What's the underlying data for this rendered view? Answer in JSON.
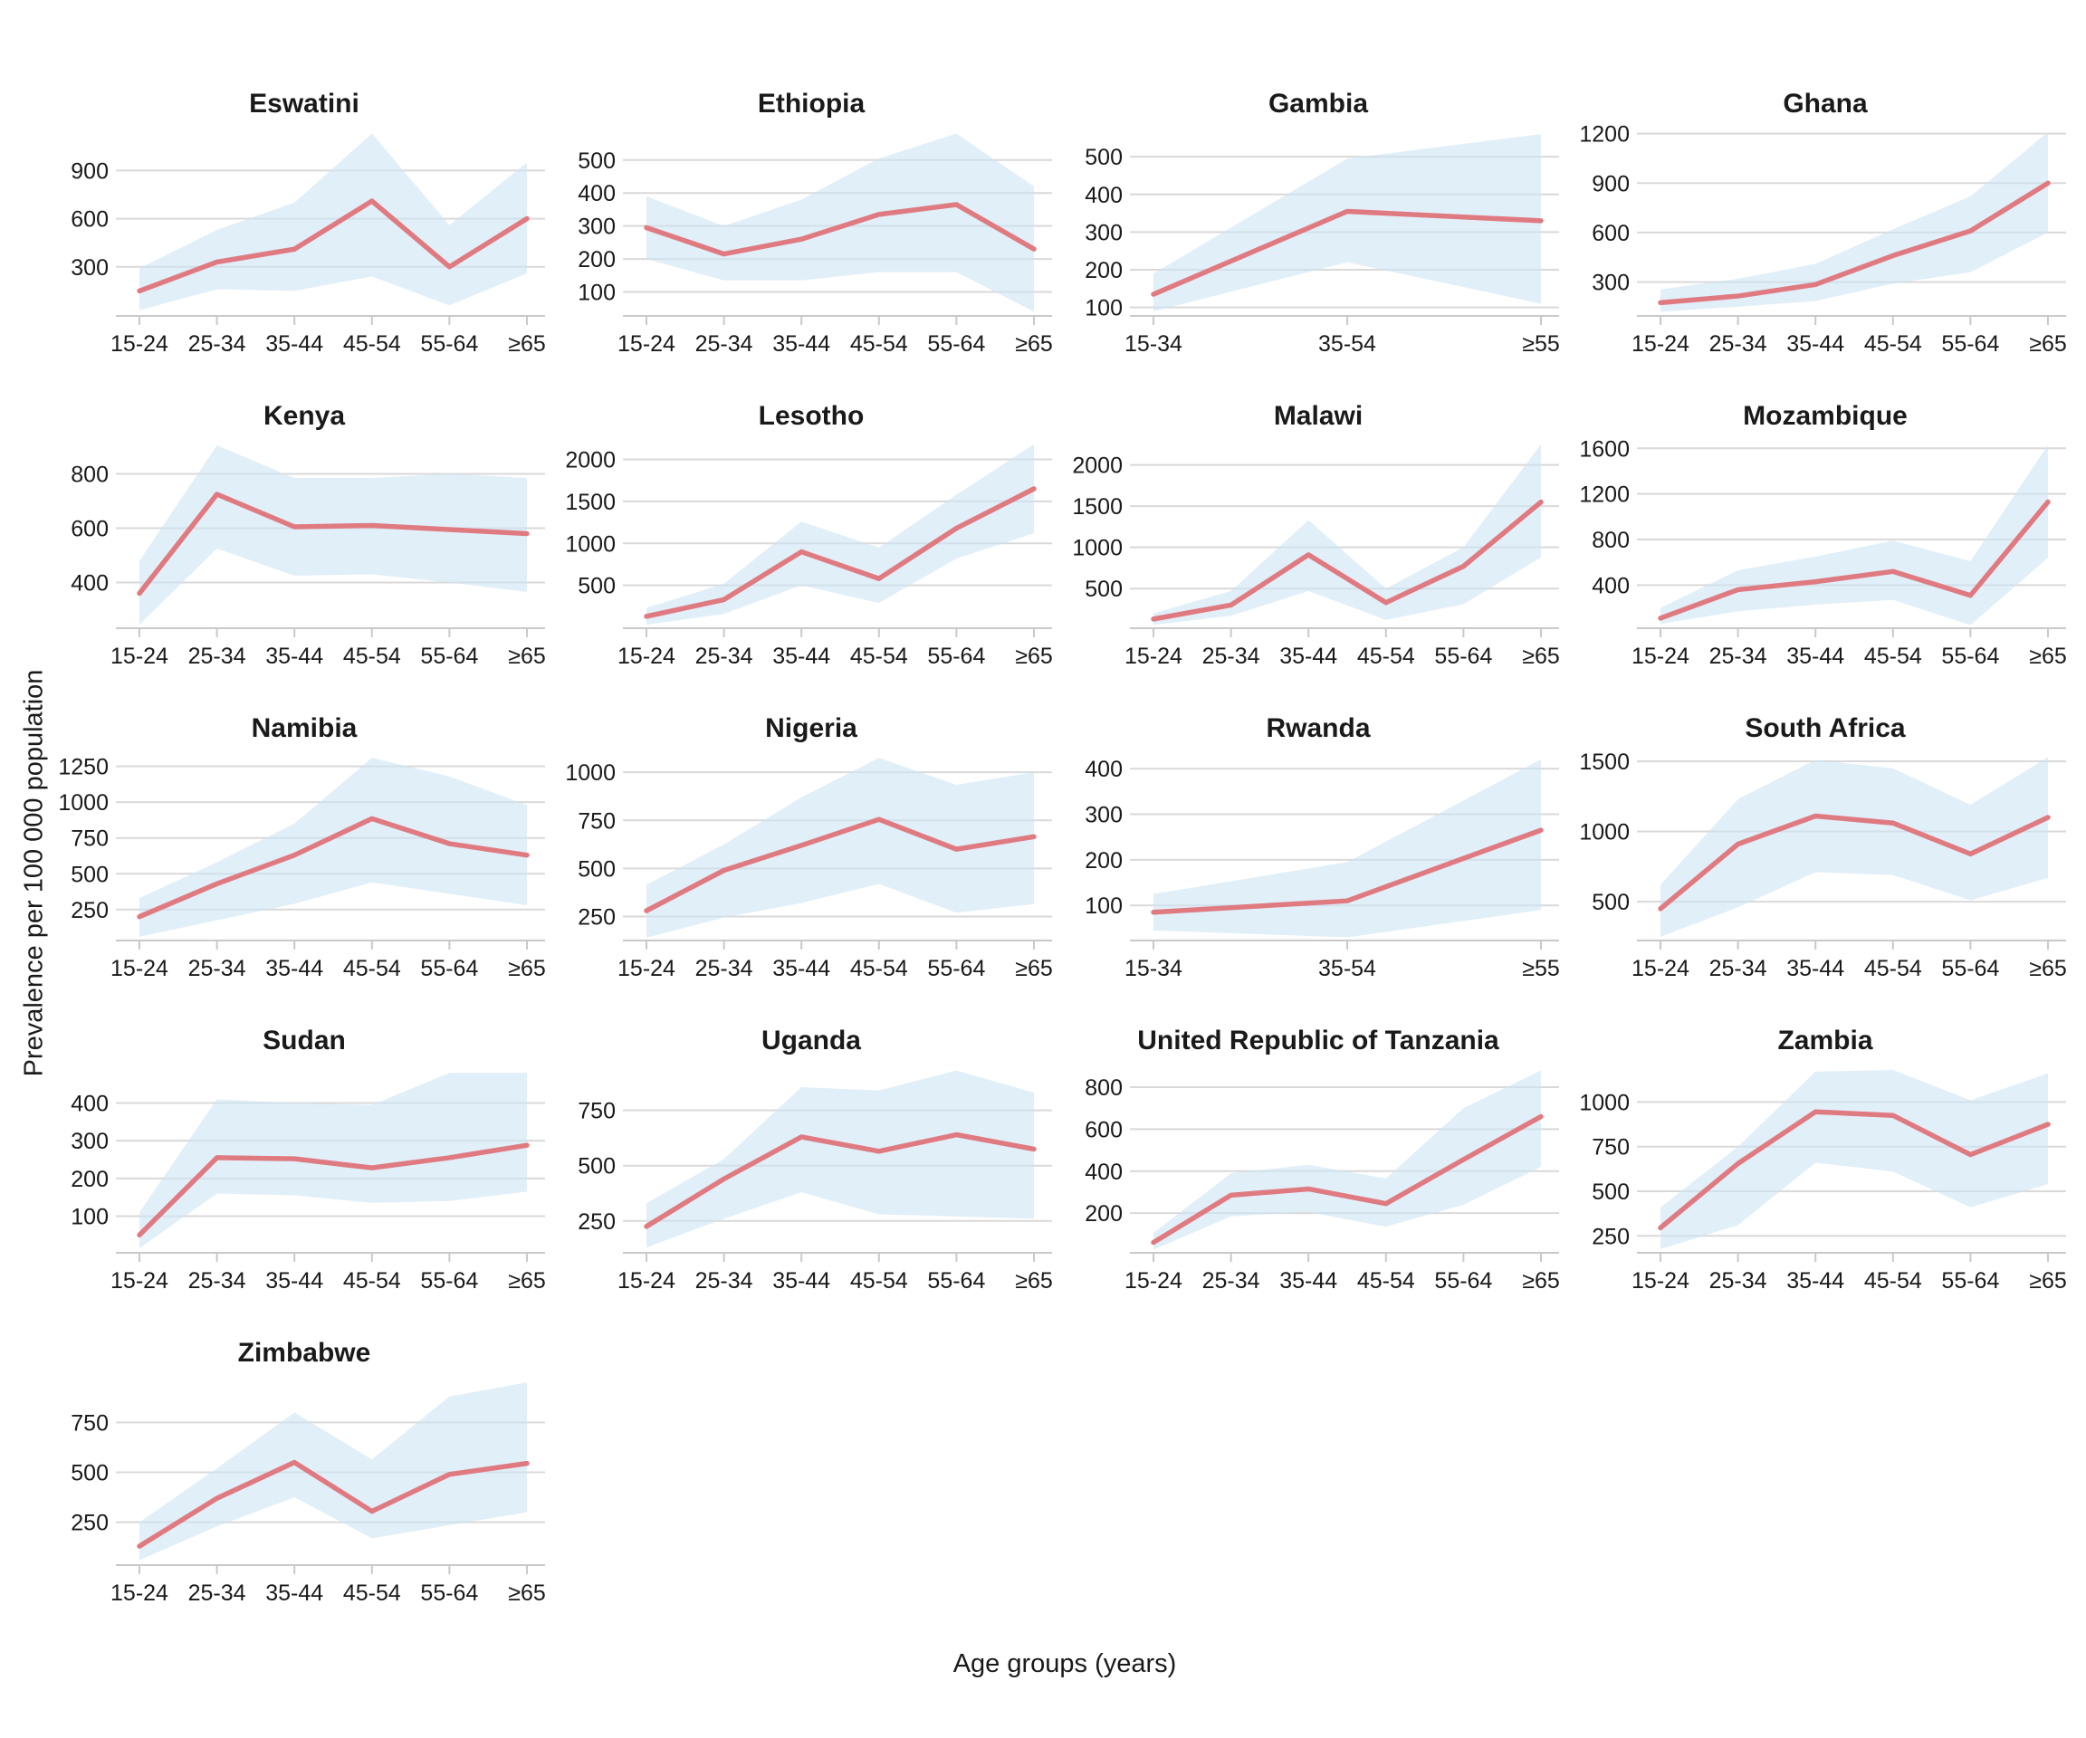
{
  "figure": {
    "y_axis_label": "Prevalence per 100 000 population",
    "x_axis_label": "Age groups (years)"
  },
  "colors": {
    "line": "#E07A81",
    "band": "#CDE4F5",
    "band_opacity": 0.6,
    "grid": "#D9D9D9",
    "axis": "#C9C9C9",
    "text": "#1A1A1A"
  },
  "chart_data": [
    {
      "type": "line",
      "title": "Eswatini",
      "categories": [
        "15-24",
        "25-34",
        "35-44",
        "45-54",
        "55-64",
        "≥65"
      ],
      "values": [
        150,
        330,
        410,
        710,
        300,
        600
      ],
      "band_lower": [
        30,
        160,
        150,
        240,
        60,
        260
      ],
      "band_upper": [
        290,
        530,
        700,
        1130,
        560,
        950
      ],
      "yticks": [
        300,
        600,
        900
      ],
      "ylim": [
        0,
        1150
      ]
    },
    {
      "type": "line",
      "title": "Ethiopia",
      "categories": [
        "15-24",
        "25-34",
        "35-44",
        "45-54",
        "55-64",
        "≥65"
      ],
      "values": [
        295,
        215,
        260,
        335,
        365,
        230
      ],
      "band_lower": [
        200,
        135,
        135,
        160,
        160,
        40
      ],
      "band_upper": [
        390,
        300,
        380,
        505,
        580,
        420
      ],
      "yticks": [
        100,
        200,
        300,
        400,
        500
      ],
      "ylim": [
        30,
        590
      ]
    },
    {
      "type": "line",
      "title": "Gambia",
      "categories": [
        "15-34",
        "35-54",
        "≥55"
      ],
      "values": [
        135,
        355,
        330
      ],
      "band_lower": [
        90,
        220,
        110
      ],
      "band_upper": [
        190,
        495,
        560
      ],
      "yticks": [
        100,
        200,
        300,
        400,
        500
      ],
      "ylim": [
        80,
        570
      ]
    },
    {
      "type": "line",
      "title": "Ghana",
      "categories": [
        "15-24",
        "25-34",
        "35-44",
        "45-54",
        "55-64",
        "≥65"
      ],
      "values": [
        175,
        215,
        285,
        460,
        610,
        900
      ],
      "band_lower": [
        120,
        150,
        185,
        290,
        360,
        600
      ],
      "band_upper": [
        255,
        320,
        410,
        620,
        820,
        1210
      ],
      "yticks": [
        300,
        600,
        900,
        1200
      ],
      "ylim": [
        100,
        1220
      ]
    },
    {
      "type": "line",
      "title": "Kenya",
      "categories": [
        "15-24",
        "25-34",
        "35-44",
        "45-54",
        "55-64",
        "≥65"
      ],
      "values": [
        360,
        725,
        605,
        610,
        595,
        580
      ],
      "band_lower": [
        245,
        525,
        425,
        430,
        400,
        365
      ],
      "band_upper": [
        480,
        905,
        785,
        785,
        800,
        785
      ],
      "yticks": [
        400,
        600,
        800
      ],
      "ylim": [
        235,
        915
      ]
    },
    {
      "type": "line",
      "title": "Lesotho",
      "categories": [
        "15-24",
        "25-34",
        "35-44",
        "45-54",
        "55-64",
        "≥65"
      ],
      "values": [
        130,
        330,
        900,
        580,
        1180,
        1650
      ],
      "band_lower": [
        30,
        160,
        500,
        290,
        820,
        1120
      ],
      "band_upper": [
        230,
        520,
        1260,
        950,
        1580,
        2180
      ],
      "yticks": [
        500,
        1000,
        1500,
        2000
      ],
      "ylim": [
        0,
        2200
      ]
    },
    {
      "type": "line",
      "title": "Malawi",
      "categories": [
        "15-24",
        "25-34",
        "35-44",
        "45-54",
        "55-64",
        "≥65"
      ],
      "values": [
        130,
        300,
        910,
        330,
        770,
        1550
      ],
      "band_lower": [
        60,
        170,
        470,
        120,
        310,
        880
      ],
      "band_upper": [
        200,
        470,
        1330,
        500,
        1000,
        2250
      ],
      "yticks": [
        500,
        1000,
        1500,
        2000
      ],
      "ylim": [
        30,
        2270
      ]
    },
    {
      "type": "line",
      "title": "Mozambique",
      "categories": [
        "15-24",
        "25-34",
        "35-44",
        "45-54",
        "55-64",
        "≥65"
      ],
      "values": [
        110,
        360,
        430,
        520,
        310,
        1130
      ],
      "band_lower": [
        60,
        170,
        230,
        270,
        50,
        640
      ],
      "band_upper": [
        200,
        530,
        650,
        790,
        610,
        1630
      ],
      "yticks": [
        400,
        800,
        1200,
        1600
      ],
      "ylim": [
        30,
        1650
      ]
    },
    {
      "type": "line",
      "title": "Namibia",
      "categories": [
        "15-24",
        "25-34",
        "35-44",
        "45-54",
        "55-64",
        "≥65"
      ],
      "values": [
        200,
        430,
        630,
        885,
        710,
        630
      ],
      "band_lower": [
        60,
        175,
        290,
        440,
        360,
        280
      ],
      "band_upper": [
        330,
        580,
        850,
        1310,
        1180,
        980
      ],
      "yticks": [
        250,
        500,
        750,
        1000,
        1250
      ],
      "ylim": [
        40,
        1330
      ]
    },
    {
      "type": "line",
      "title": "Nigeria",
      "categories": [
        "15-24",
        "25-34",
        "35-44",
        "45-54",
        "55-64",
        "≥65"
      ],
      "values": [
        280,
        490,
        620,
        755,
        600,
        665
      ],
      "band_lower": [
        140,
        245,
        320,
        420,
        270,
        315
      ],
      "band_upper": [
        415,
        625,
        870,
        1075,
        935,
        1000
      ],
      "yticks": [
        250,
        500,
        750,
        1000
      ],
      "ylim": [
        130,
        1090
      ]
    },
    {
      "type": "line",
      "title": "Rwanda",
      "categories": [
        "15-34",
        "35-54",
        "≥55"
      ],
      "values": [
        85,
        110,
        265
      ],
      "band_lower": [
        45,
        30,
        90
      ],
      "band_upper": [
        125,
        195,
        420
      ],
      "yticks": [
        100,
        200,
        300,
        400
      ],
      "ylim": [
        25,
        430
      ]
    },
    {
      "type": "line",
      "title": "South Africa",
      "categories": [
        "15-24",
        "25-34",
        "35-44",
        "45-54",
        "55-64",
        "≥65"
      ],
      "values": [
        450,
        910,
        1110,
        1060,
        840,
        1100
      ],
      "band_lower": [
        250,
        460,
        710,
        690,
        510,
        670
      ],
      "band_upper": [
        620,
        1230,
        1510,
        1450,
        1190,
        1530
      ],
      "yticks": [
        500,
        1000,
        1500
      ],
      "ylim": [
        230,
        1545
      ]
    },
    {
      "type": "line",
      "title": "Sudan",
      "categories": [
        "15-24",
        "25-34",
        "35-44",
        "45-54",
        "55-64",
        "≥65"
      ],
      "values": [
        50,
        255,
        252,
        228,
        255,
        288
      ],
      "band_lower": [
        15,
        160,
        155,
        135,
        140,
        165
      ],
      "band_upper": [
        110,
        410,
        400,
        395,
        480,
        480
      ],
      "yticks": [
        100,
        200,
        300,
        400
      ],
      "ylim": [
        5,
        495
      ]
    },
    {
      "type": "line",
      "title": "Uganda",
      "categories": [
        "15-24",
        "25-34",
        "35-44",
        "45-54",
        "55-64",
        "≥65"
      ],
      "values": [
        225,
        440,
        630,
        565,
        640,
        575
      ],
      "band_lower": [
        130,
        260,
        380,
        280,
        270,
        260
      ],
      "band_upper": [
        330,
        530,
        855,
        840,
        930,
        830
      ],
      "yticks": [
        250,
        500,
        750
      ],
      "ylim": [
        110,
        945
      ]
    },
    {
      "type": "line",
      "title": "United Republic of Tanzania",
      "categories": [
        "15-24",
        "25-34",
        "35-44",
        "45-54",
        "55-64",
        "≥65"
      ],
      "values": [
        60,
        285,
        315,
        245,
        455,
        660
      ],
      "band_lower": [
        25,
        185,
        205,
        135,
        240,
        420
      ],
      "band_upper": [
        105,
        390,
        430,
        365,
        700,
        880
      ],
      "yticks": [
        200,
        400,
        600,
        800
      ],
      "ylim": [
        15,
        895
      ]
    },
    {
      "type": "line",
      "title": "Zambia",
      "categories": [
        "15-24",
        "25-34",
        "35-44",
        "45-54",
        "55-64",
        "≥65"
      ],
      "values": [
        295,
        655,
        945,
        925,
        705,
        875
      ],
      "band_lower": [
        175,
        310,
        660,
        610,
        410,
        540
      ],
      "band_upper": [
        410,
        750,
        1170,
        1180,
        1010,
        1160
      ],
      "yticks": [
        250,
        500,
        750,
        1000
      ],
      "ylim": [
        160,
        1195
      ]
    },
    {
      "type": "line",
      "title": "Zimbabwe",
      "categories": [
        "15-24",
        "25-34",
        "35-44",
        "45-54",
        "55-64",
        "≥65"
      ],
      "values": [
        130,
        370,
        550,
        305,
        490,
        545
      ],
      "band_lower": [
        60,
        230,
        375,
        170,
        235,
        300
      ],
      "band_upper": [
        250,
        520,
        800,
        565,
        880,
        950
      ],
      "yticks": [
        250,
        500,
        750
      ],
      "ylim": [
        40,
        965
      ]
    }
  ]
}
